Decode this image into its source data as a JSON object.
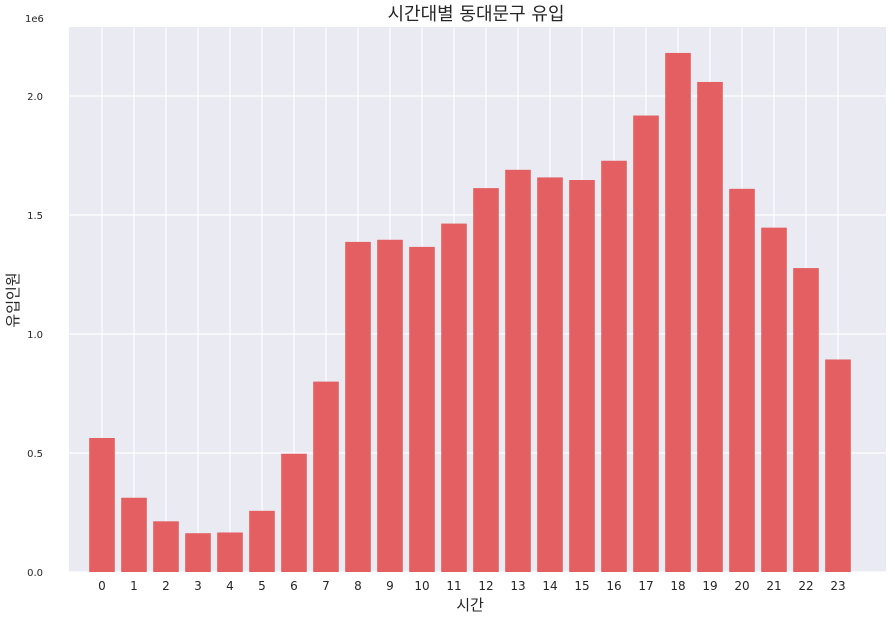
{
  "chart_data": {
    "type": "bar",
    "title": "시간대별 동대문구 유입",
    "xlabel": "시간",
    "ylabel": "유입인원",
    "y_offset_label": "1e6",
    "categories": [
      "0",
      "1",
      "2",
      "3",
      "4",
      "5",
      "6",
      "7",
      "8",
      "9",
      "10",
      "11",
      "12",
      "13",
      "14",
      "15",
      "16",
      "17",
      "18",
      "19",
      "20",
      "21",
      "22",
      "23"
    ],
    "values": [
      563000,
      312000,
      213000,
      163000,
      166000,
      257000,
      497000,
      800000,
      1387000,
      1396000,
      1366000,
      1464000,
      1613000,
      1690000,
      1658000,
      1647000,
      1728000,
      1918000,
      2181000,
      2059000,
      1610000,
      1447000,
      1277000,
      893000
    ],
    "yticks": [
      0,
      500000,
      1000000,
      1500000,
      2000000
    ],
    "ytick_labels": [
      "0.0",
      "0.5",
      "1.0",
      "1.5",
      "2.0"
    ],
    "ylim": [
      0,
      2290000
    ],
    "bar_color": "#e35f61",
    "background_color": "#eaeaf2",
    "grid_color": "#ffffff",
    "grid": true
  }
}
